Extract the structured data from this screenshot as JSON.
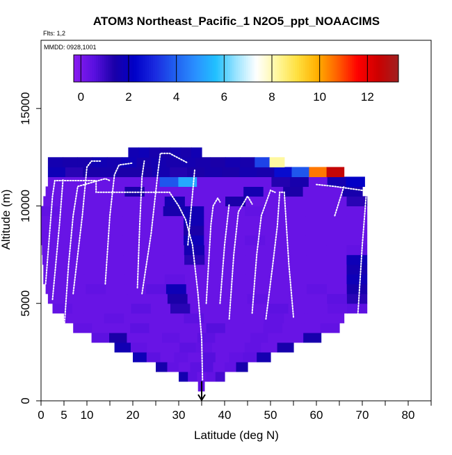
{
  "chart_data": {
    "type": "heatmap",
    "title": "ATOM3 Northeast_Pacific_1 N2O5_ppt_NOAACIMS",
    "subtitle_flights": "Flts: 1,2",
    "subtitle_dates": "MMDD: 0928,1001",
    "xlabel": "Latitude (deg N)",
    "ylabel": "Altitude (m)",
    "xlim": [
      0,
      85
    ],
    "ylim": [
      0,
      18500
    ],
    "xticks": [
      0,
      5,
      10,
      20,
      30,
      40,
      50,
      60,
      70,
      80
    ],
    "xticks_minor": [
      15,
      25,
      35,
      45,
      55,
      65,
      75,
      85
    ],
    "yticks": [
      0,
      5000,
      10000,
      15000
    ],
    "colorbar": {
      "ticks": [
        0,
        2,
        4,
        6,
        8,
        10,
        12
      ],
      "range": [
        -0.3,
        13.3
      ],
      "colors": [
        "#8a1cf0",
        "#5a10e0",
        "#1a00a8",
        "#0000c8",
        "#1a2ae0",
        "#2060f0",
        "#2a90ff",
        "#20c0ff",
        "#9ae4ff",
        "#ffffff",
        "#fff8a0",
        "#ffe040",
        "#ffb000",
        "#ff6000",
        "#ff0000",
        "#cc0000",
        "#a02020"
      ]
    },
    "marker_latitude": 35,
    "curtain_rows": [
      {
        "alt": 500,
        "lat_min": 34.2,
        "lat_max": 35.6,
        "values": [
          0.4
        ]
      },
      {
        "alt": 1000,
        "lat_min": 30,
        "lat_max": 40,
        "values": [
          1.6,
          0.5,
          0.3,
          0.4,
          0.8
        ]
      },
      {
        "alt": 1500,
        "lat_min": 25,
        "lat_max": 45,
        "values": [
          1.5,
          0.4,
          0.3,
          0.5,
          0.6,
          0.3,
          0.4,
          1.5
        ]
      },
      {
        "alt": 2000,
        "lat_min": 20,
        "lat_max": 50,
        "values": [
          1.8,
          0.5,
          0.3,
          0.4,
          0.3,
          0.6,
          0.3,
          0.4,
          0.5,
          1.6
        ]
      },
      {
        "alt": 2500,
        "lat_min": 16,
        "lat_max": 55,
        "values": [
          1.7,
          0.4,
          0.3,
          0.3,
          0.5,
          0.4,
          0.3,
          0.3,
          0.4,
          0.3,
          1.5
        ]
      },
      {
        "alt": 3000,
        "lat_min": 11,
        "lat_max": 61,
        "values": [
          0.5,
          1.4,
          0.3,
          0.3,
          0.4,
          0.3,
          0.5,
          0.3,
          0.3,
          0.4,
          0.3,
          0.3,
          1.5
        ]
      },
      {
        "alt": 3500,
        "lat_min": 7,
        "lat_max": 65,
        "values": [
          0.4,
          0.3,
          0.3,
          0.5,
          0.3,
          0.3,
          0.3,
          0.6,
          0.3,
          0.3,
          0.4,
          0.3,
          0.3,
          0.4
        ]
      },
      {
        "alt": 4000,
        "lat_min": 5,
        "lat_max": 66,
        "values": [
          0.3,
          0.3,
          0.4,
          0.3,
          0.3,
          0.3,
          0.5,
          0.3,
          0.3,
          0.3,
          0.4,
          0.3,
          0.3,
          0.3
        ]
      },
      {
        "alt": 4500,
        "lat_min": 2.5,
        "lat_max": 71,
        "values": [
          0.4,
          0.3,
          0.3,
          0.3,
          0.5,
          0.3,
          1.2,
          0.3,
          0.3,
          0.3,
          0.3,
          0.5,
          0.3,
          0.3,
          0.4,
          0.5
        ]
      },
      {
        "alt": 5000,
        "lat_min": 1.5,
        "lat_max": 71,
        "values": [
          0.3,
          0.3,
          0.3,
          0.3,
          0.3,
          0.3,
          1.4,
          0.3,
          0.3,
          0.3,
          0.4,
          0.3,
          0.3,
          0.3,
          0.5,
          1.2
        ]
      },
      {
        "alt": 5500,
        "lat_min": 1,
        "lat_max": 71,
        "values": [
          0.3,
          0.3,
          0.4,
          0.3,
          0.3,
          0.5,
          1.8,
          0.3,
          0.3,
          0.3,
          0.3,
          0.3,
          0.3,
          0.4,
          0.3,
          1.5
        ]
      },
      {
        "alt": 6000,
        "lat_min": 0.5,
        "lat_max": 71,
        "values": [
          0.3,
          0.3,
          0.3,
          0.3,
          0.3,
          0.3,
          0.4,
          0.3,
          0.3,
          0.3,
          0.3,
          0.3,
          0.3,
          0.3,
          0.3,
          1.8
        ]
      },
      {
        "alt": 6500,
        "lat_min": 0.5,
        "lat_max": 71,
        "values": [
          0.3,
          0.3,
          0.3,
          0.3,
          0.3,
          0.3,
          0.3,
          0.3,
          0.3,
          0.3,
          0.3,
          0.3,
          0.3,
          0.3,
          0.3,
          1.6
        ]
      },
      {
        "alt": 7000,
        "lat_min": 0.3,
        "lat_max": 71,
        "values": [
          0.3,
          0.3,
          0.3,
          0.3,
          0.3,
          0.3,
          0.3,
          1.2,
          0.3,
          0.3,
          0.3,
          0.3,
          0.3,
          0.3,
          0.3,
          1.8
        ]
      },
      {
        "alt": 7500,
        "lat_min": 0.2,
        "lat_max": 71,
        "values": [
          0.3,
          0.3,
          0.3,
          0.3,
          0.3,
          0.3,
          0.3,
          1.6,
          0.3,
          0.3,
          0.3,
          0.3,
          0.3,
          0.3,
          0.3,
          0.4
        ]
      },
      {
        "alt": 8000,
        "lat_min": 0,
        "lat_max": 71,
        "values": [
          0.3,
          0.3,
          0.3,
          0.3,
          0.3,
          0.3,
          0.3,
          1.8,
          0.3,
          0.3,
          0.4,
          0.3,
          0.3,
          0.3,
          0.3,
          0.3
        ]
      },
      {
        "alt": 8500,
        "lat_min": 0,
        "lat_max": 71,
        "values": [
          0.3,
          0.3,
          0.3,
          0.3,
          0.3,
          0.3,
          0.3,
          1.4,
          0.3,
          0.3,
          0.3,
          0.3,
          0.3,
          0.3,
          0.3,
          0.3
        ]
      },
      {
        "alt": 9000,
        "lat_min": 0,
        "lat_max": 71,
        "values": [
          0.3,
          0.3,
          0.3,
          0.3,
          0.3,
          0.3,
          0.3,
          1.7,
          0.3,
          0.3,
          0.3,
          0.3,
          0.3,
          0.3,
          0.3,
          0.3
        ]
      },
      {
        "alt": 9500,
        "lat_min": 0,
        "lat_max": 71,
        "values": [
          0.4,
          0.3,
          0.3,
          0.3,
          0.3,
          0.3,
          1.5,
          1.7,
          0.3,
          0.3,
          0.4,
          0.3,
          0.3,
          0.3,
          0.3,
          0.3
        ]
      },
      {
        "alt": 10000,
        "lat_min": 0.5,
        "lat_max": 71,
        "values": [
          0.3,
          0.3,
          0.3,
          0.3,
          0.3,
          0.3,
          1.6,
          0.3,
          0.3,
          1.4,
          0.3,
          0.3,
          0.3,
          0.3,
          0.3,
          1.2
        ]
      },
      {
        "alt": 10500,
        "lat_min": 1,
        "lat_max": 70,
        "values": [
          0.3,
          0.3,
          0.3,
          0.3,
          1.4,
          0.3,
          0.3,
          0.3,
          0.3,
          0.3,
          1.6,
          0.3,
          1.4,
          0.3,
          0.3,
          1.5
        ]
      },
      {
        "alt": 11000,
        "lat_min": 1.5,
        "lat_max": 70.5,
        "values": [
          0.3,
          0.3,
          0.3,
          0.3,
          0.3,
          0.3,
          3.8,
          5.2,
          0.3,
          0.3,
          0.3,
          0.3,
          1.3,
          1.5,
          0.3,
          1.6,
          2.2
        ]
      },
      {
        "alt": 11500,
        "lat_min": 1.5,
        "lat_max": 66,
        "values": [
          1.8,
          1.2,
          1.4,
          1.5,
          1.4,
          1.4,
          1.6,
          1.3,
          1.4,
          1.5,
          1.4,
          1.6,
          1.5,
          2.5,
          3.8,
          10.5,
          12.6
        ]
      },
      {
        "alt": 12000,
        "lat_min": 1.5,
        "lat_max": 53,
        "values": [
          1.6,
          1.5,
          1.5,
          1.7,
          1.6,
          1.8,
          1.5,
          1.6,
          1.5,
          1.6,
          1.5,
          1.4,
          1.6,
          1.5,
          3.5,
          8.2
        ]
      },
      {
        "alt": 12500,
        "lat_min": 19,
        "lat_max": 35,
        "values": [
          1.7,
          1.8,
          1.5,
          1.4,
          1.6,
          1.5,
          1.7
        ]
      }
    ],
    "flight_tracks": [
      [
        [
          1,
          6000
        ],
        [
          2,
          9000
        ],
        [
          2.5,
          10500
        ],
        [
          3,
          11300
        ],
        [
          12,
          11300
        ],
        [
          12,
          10700
        ],
        [
          25,
          10700
        ],
        [
          28,
          10700
        ],
        [
          30,
          10000
        ],
        [
          31.5,
          9300
        ],
        [
          33,
          8000
        ],
        [
          34.2,
          5500
        ],
        [
          35,
          3200
        ],
        [
          35.2,
          1000
        ]
      ],
      [
        [
          5,
          3600
        ],
        [
          6,
          7000
        ],
        [
          7,
          9500
        ],
        [
          8,
          11000
        ],
        [
          14,
          11400
        ],
        [
          15,
          11300
        ]
      ],
      [
        [
          7,
          5500
        ],
        [
          9,
          9500
        ],
        [
          10,
          12000
        ],
        [
          11,
          12300
        ],
        [
          13,
          12300
        ]
      ],
      [
        [
          2.5,
          5200
        ],
        [
          4,
          9000
        ],
        [
          4.8,
          11400
        ]
      ],
      [
        [
          14,
          6000
        ],
        [
          15,
          9500
        ],
        [
          16,
          11600
        ],
        [
          17,
          12100
        ],
        [
          20,
          12200
        ]
      ],
      [
        [
          21,
          5800
        ],
        [
          21.5,
          9000
        ],
        [
          22,
          11500
        ],
        [
          22.5,
          12300
        ]
      ],
      [
        [
          22,
          5500
        ],
        [
          24,
          8600
        ],
        [
          25.5,
          11800
        ],
        [
          26,
          12700
        ],
        [
          28,
          12700
        ],
        [
          32,
          12200
        ]
      ],
      [
        [
          32,
          8000
        ],
        [
          33.5,
          11900
        ]
      ],
      [
        [
          36,
          5000
        ],
        [
          37,
          9000
        ],
        [
          37.5,
          10000
        ],
        [
          38.5,
          10400
        ],
        [
          39,
          10200
        ]
      ],
      [
        [
          39,
          5000
        ],
        [
          40,
          8000
        ],
        [
          41,
          10100
        ]
      ],
      [
        [
          41,
          4200
        ],
        [
          42,
          7500
        ],
        [
          43,
          9700
        ],
        [
          45,
          10500
        ],
        [
          46,
          10100
        ]
      ],
      [
        [
          46,
          4500
        ],
        [
          47,
          7500
        ],
        [
          48,
          9500
        ],
        [
          50,
          10800
        ],
        [
          51,
          10700
        ]
      ],
      [
        [
          49,
          4200
        ],
        [
          50.5,
          7000
        ],
        [
          51.5,
          9000
        ],
        [
          52,
          10700
        ],
        [
          53,
          10700
        ],
        [
          54,
          7000
        ],
        [
          55,
          4300
        ]
      ],
      [
        [
          60,
          11100
        ],
        [
          64,
          11000
        ],
        [
          70,
          10800
        ]
      ],
      [
        [
          64,
          9500
        ],
        [
          66,
          11000
        ]
      ],
      [
        [
          69,
          4300
        ],
        [
          70,
          8000
        ],
        [
          71,
          11000
        ]
      ]
    ]
  }
}
